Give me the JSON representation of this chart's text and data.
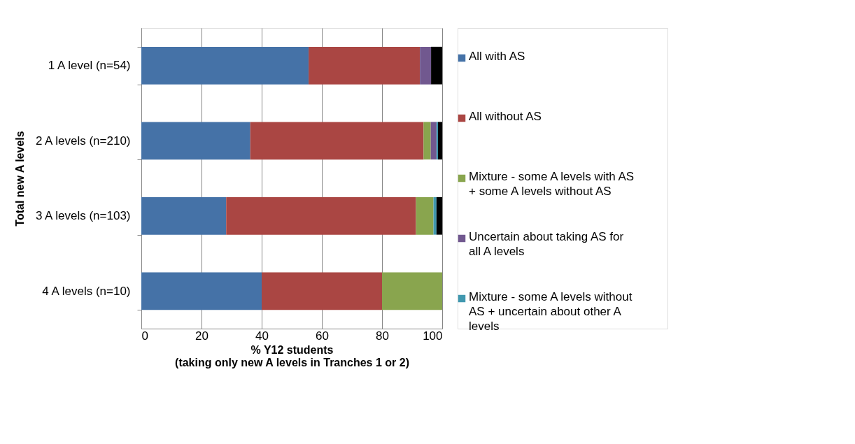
{
  "chart_data": {
    "type": "bar",
    "orientation": "horizontal",
    "stacked": true,
    "xlabel": "% Y12 students\n(taking only new A levels in Tranches 1 or 2)",
    "ylabel": "Total new A levels",
    "categories": [
      "1 A level (n=54)",
      "2 A levels (n=210)",
      "3 A levels (n=103)",
      "4 A levels (n=10)"
    ],
    "series": [
      {
        "name": "All with AS",
        "color": "#4572a7",
        "values": [
          55.6,
          36.2,
          28.2,
          40
        ]
      },
      {
        "name": "All without AS",
        "color": "#aa4643",
        "values": [
          37.0,
          57.6,
          63.1,
          40
        ]
      },
      {
        "name": "Mixture - some A levels with AS + some A levels without AS",
        "color": "#89a54e",
        "values": [
          0,
          2.4,
          5.8,
          20
        ]
      },
      {
        "name": "Uncertain about taking AS for all A levels",
        "color": "#71588f",
        "values": [
          3.7,
          1.9,
          0,
          0
        ]
      },
      {
        "name": "Mixture - some A levels without AS + uncertain about other A levels",
        "color": "#4198af",
        "values": [
          0,
          0.5,
          1.0,
          0
        ]
      },
      {
        "color": "#000000",
        "values": [
          3.7,
          1.4,
          1.9,
          0
        ]
      }
    ],
    "xlim": [
      0,
      100
    ],
    "xticks": [
      0,
      20,
      40,
      60,
      80,
      100
    ],
    "grid": "x",
    "legend": "right"
  }
}
